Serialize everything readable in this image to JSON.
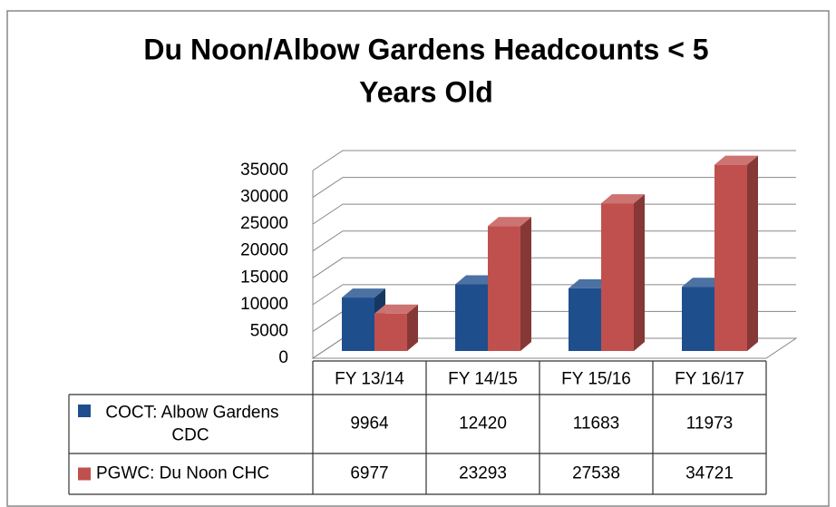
{
  "chart_data": {
    "type": "bar3d",
    "title": [
      "Du Noon/Albow Gardens Headcounts < 5",
      "Years Old"
    ],
    "categories": [
      "FY 13/14",
      "FY 14/15",
      "FY 15/16",
      "FY 16/17"
    ],
    "series": [
      {
        "name": "COCT: Albow Gardens CDC",
        "color": "#1f4e8c",
        "values": [
          9964,
          12420,
          11683,
          11973
        ]
      },
      {
        "name": "PGWC: Du Noon CHC",
        "color": "#c0504d",
        "values": [
          6977,
          23293,
          27538,
          34721
        ]
      }
    ],
    "ylim": [
      0,
      35000
    ],
    "yticks": [
      0,
      5000,
      10000,
      15000,
      20000,
      25000,
      30000,
      35000
    ],
    "grid": true,
    "data_table": true
  }
}
